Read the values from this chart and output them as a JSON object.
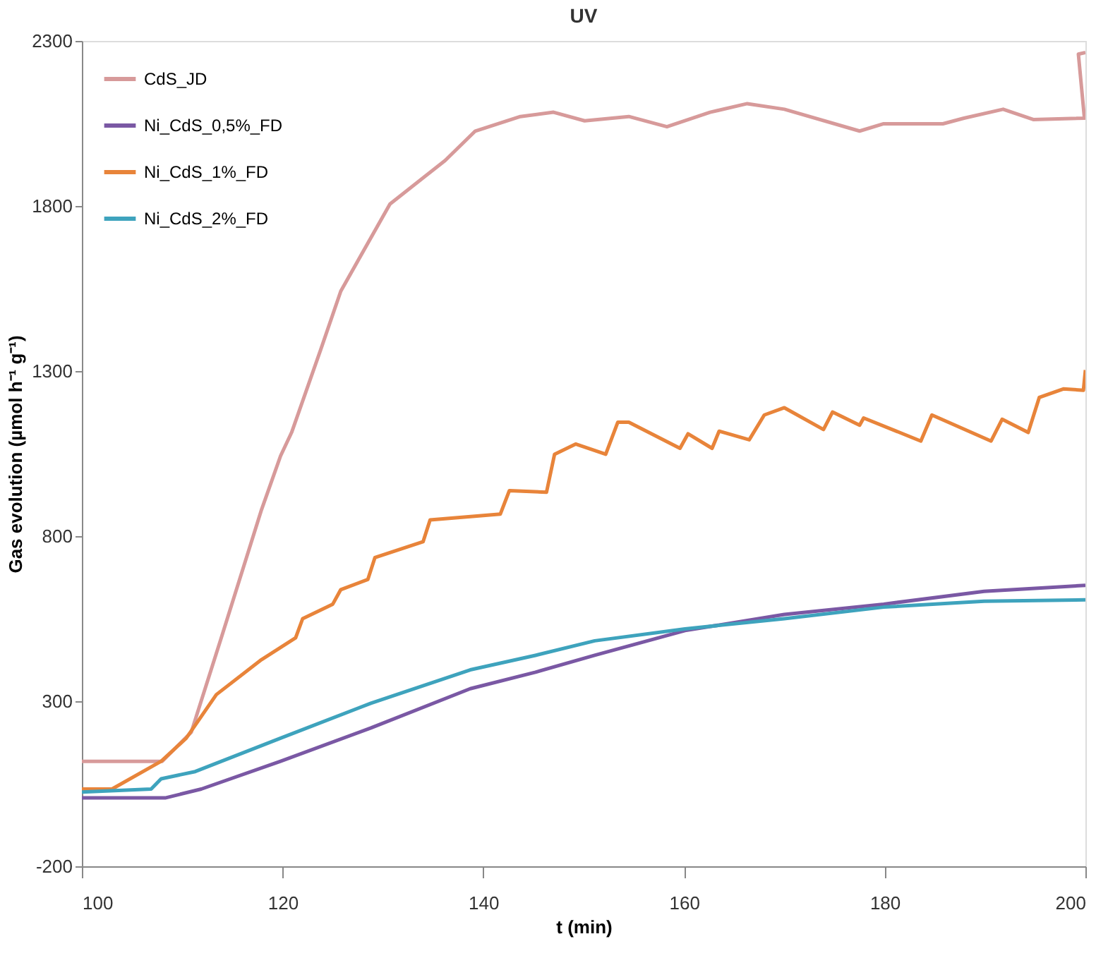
{
  "chart_data": {
    "type": "line",
    "title": "UV",
    "xlabel": "t (min)",
    "ylabel": "Gas evolution (µmol h⁻¹ g⁻¹)",
    "xlim": [
      100,
      200
    ],
    "xticks": [
      100,
      120,
      140,
      160,
      180,
      200
    ],
    "ylim": [
      -200,
      2300
    ],
    "yticks": [
      -200,
      300,
      800,
      1300,
      1800,
      2300
    ],
    "grid": false,
    "legend": "top left",
    "marker": "none",
    "line_style": "solid",
    "series": [
      {
        "name": "CdS_JD",
        "color": "#d79a9a",
        "x": [
          100,
          108,
          110.9,
          113.9,
          117.9,
          119.8,
          120.9,
          123.8,
          125.8,
          130.7,
          136.2,
          139.2,
          143.7,
          147,
          150.1,
          154.5,
          158.3,
          162.6,
          166.3,
          170,
          177.5,
          179.9,
          185.8,
          187.9,
          191.8,
          194.8,
          199.9,
          199.3,
          200
        ],
        "values": [
          118,
          118,
          206,
          493,
          880,
          1043,
          1114,
          1365,
          1542,
          1806,
          1938,
          2027,
          2071,
          2084,
          2058,
          2071,
          2040,
          2084,
          2110,
          2093,
          2027,
          2049,
          2049,
          2066,
          2093,
          2062,
          2066,
          2260,
          2265
        ]
      },
      {
        "name": "Ni_CdS_0,5%_FD",
        "color": "#7a58a4",
        "x": [
          100,
          108.3,
          111.9,
          119.8,
          128.8,
          138.7,
          145.2,
          151.1,
          160.1,
          170,
          179.9,
          189.9,
          200
        ],
        "values": [
          7,
          7,
          34,
          118,
          219,
          338,
          388,
          439,
          514,
          563,
          594,
          633,
          651
        ]
      },
      {
        "name": "Ni_CdS_1%_FD",
        "color": "#e8843a",
        "x": [
          100,
          103,
          107.9,
          110.4,
          113.4,
          117.9,
          121.3,
          122,
          125,
          125.8,
          128.5,
          129.2,
          134,
          134.7,
          141.7,
          142.6,
          146.3,
          147.1,
          149.2,
          152.2,
          153.4,
          154.5,
          159.6,
          160.4,
          162.8,
          163.5,
          166.5,
          168,
          170,
          173.9,
          174.8,
          177.5,
          177.9,
          183.6,
          184.7,
          190.6,
          191.7,
          194.3,
          195.4,
          197.8,
          199.8,
          200
        ],
        "values": [
          34,
          34,
          118,
          188,
          320,
          426,
          492,
          550,
          594,
          638,
          669,
          735,
          783,
          849,
          867,
          938,
          933,
          1048,
          1079,
          1048,
          1145,
          1145,
          1066,
          1110,
          1066,
          1118,
          1092,
          1167,
          1189,
          1123,
          1176,
          1136,
          1158,
          1088,
          1167,
          1088,
          1154,
          1114,
          1220,
          1246,
          1242,
          1303
        ]
      },
      {
        "name": "Ni_CdS_2%_FD",
        "color": "#3ea3bd",
        "x": [
          100,
          106.9,
          107.9,
          111.3,
          119.8,
          128.8,
          138.7,
          145.2,
          151.1,
          160.1,
          170,
          179.9,
          189.9,
          200
        ],
        "values": [
          25,
          34,
          65,
          87,
          188,
          294,
          395,
          439,
          483,
          519,
          550,
          585,
          603,
          607
        ]
      }
    ]
  }
}
